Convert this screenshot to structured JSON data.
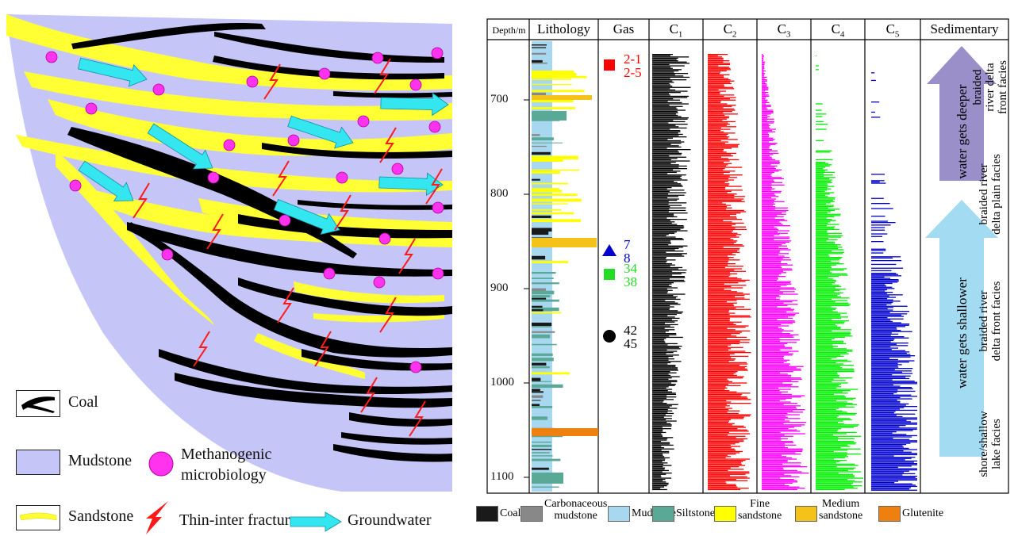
{
  "left_legend": {
    "coal": "Coal",
    "mudstone": "Mudstone",
    "sandstone": "Sandstone",
    "microbe": "Methanogenic microbiology",
    "microbe_line1": "Methanogenic",
    "microbe_line2": "microbiology",
    "fracture": "Thin-inter fracture",
    "groundwater": "Groundwater"
  },
  "colors": {
    "mudstone_fill": "#c5c6f7",
    "sand": "#ffff33",
    "coal": "#000000",
    "microbe": "#ff33ee",
    "fracture": "#ff1a1a",
    "water": "#33e6f0"
  },
  "columns": {
    "depth": "Depth/m",
    "lithology": "Lithology",
    "gas": "Gas",
    "c1": "C1",
    "c2": "C2",
    "c3": "C3",
    "c4": "C4",
    "c5": "C5",
    "sedimentary": "Sedimentary"
  },
  "depth_ticks": [
    "700",
    "800",
    "900",
    "1000",
    "1100"
  ],
  "gas_samples": [
    {
      "symbol": "square",
      "color": "#ff0000",
      "labels": [
        "2-1",
        "2-5"
      ]
    },
    {
      "symbol": "triangle",
      "color": "#0000cc",
      "labels": [
        "7",
        "8"
      ]
    },
    {
      "symbol": "square",
      "color": "#22dd22",
      "labels": [
        "34",
        "38"
      ]
    },
    {
      "symbol": "circle",
      "color": "#000000",
      "labels": [
        "42",
        "45"
      ]
    }
  ],
  "sedimentary": {
    "arrow_up": "water gets deeper",
    "arrow_down": "water gets shallower",
    "facies": [
      [
        "braided",
        "river delta",
        "front facies"
      ],
      [
        "braided river",
        "delta plain facies"
      ],
      [
        "braided river",
        "delta front facies"
      ],
      [
        "shore/shallow",
        "lake facies"
      ]
    ]
  },
  "lithology_legend": [
    {
      "label": "Coal",
      "color": "#1a1a1a"
    },
    {
      "label": "Carbonaceous mudstone",
      "line1": "Carbonaceous",
      "line2": "mudstone",
      "color": "#888888"
    },
    {
      "label": "Mudstone",
      "color": "#a8d8f0"
    },
    {
      "label": "Siltstone",
      "color": "#5aa896"
    },
    {
      "label": "Fine sandstone",
      "line1": "Fine",
      "line2": "sandstone",
      "color": "#ffff00"
    },
    {
      "label": "Medium sandstone",
      "line1": "Medium",
      "line2": "sandstone",
      "color": "#f5c21a"
    },
    {
      "label": "Glutenite",
      "color": "#ee8010"
    }
  ],
  "log_colors": {
    "c1": "#000000",
    "c2": "#ff0000",
    "c3": "#ff00ff",
    "c4": "#00ee00",
    "c5": "#0000cc"
  }
}
